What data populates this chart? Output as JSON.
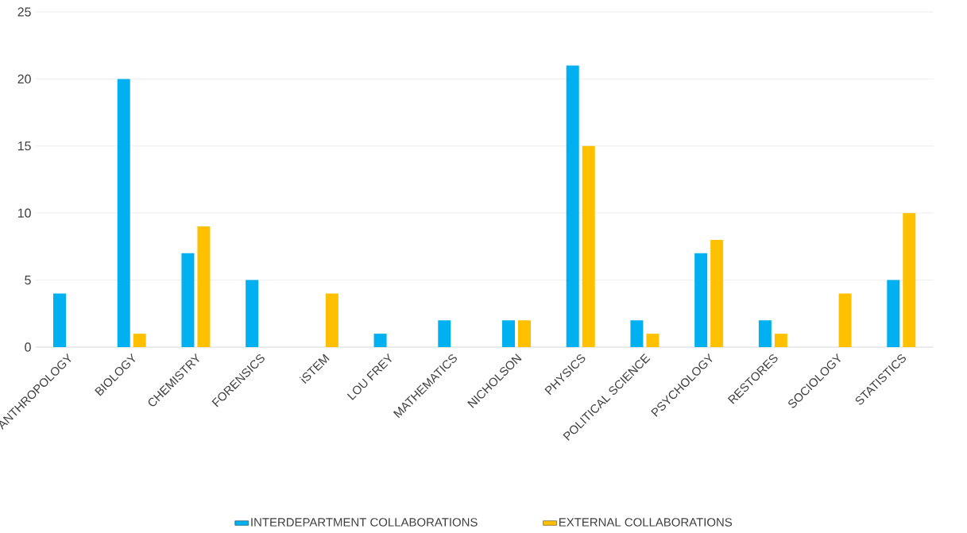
{
  "chart_data": {
    "type": "bar",
    "categories": [
      "ANTHROPOLOGY",
      "BIOLOGY",
      "CHEMISTRY",
      "FORENSICS",
      "iSTEM",
      "LOU FREY",
      "MATHEMATICS",
      "NICHOLSON",
      "PHYSICS",
      "POLITICAL SCIENCE",
      "PSYCHOLOGY",
      "RESTORES",
      "SOCIOLOGY",
      "STATISTICS"
    ],
    "series": [
      {
        "name": "INTERDEPARTMENT COLLABORATIONS",
        "color": "#00b0f0",
        "values": [
          4,
          20,
          7,
          5,
          0,
          1,
          2,
          2,
          21,
          2,
          7,
          2,
          0,
          5
        ]
      },
      {
        "name": "EXTERNAL COLLABORATIONS",
        "color": "#ffc000",
        "values": [
          0,
          1,
          9,
          0,
          4,
          0,
          0,
          2,
          15,
          1,
          8,
          1,
          4,
          10
        ]
      }
    ],
    "ylim": [
      0,
      25
    ],
    "yticks": [
      0,
      5,
      10,
      15,
      20,
      25
    ],
    "grid": "y",
    "legend": "bottom"
  }
}
